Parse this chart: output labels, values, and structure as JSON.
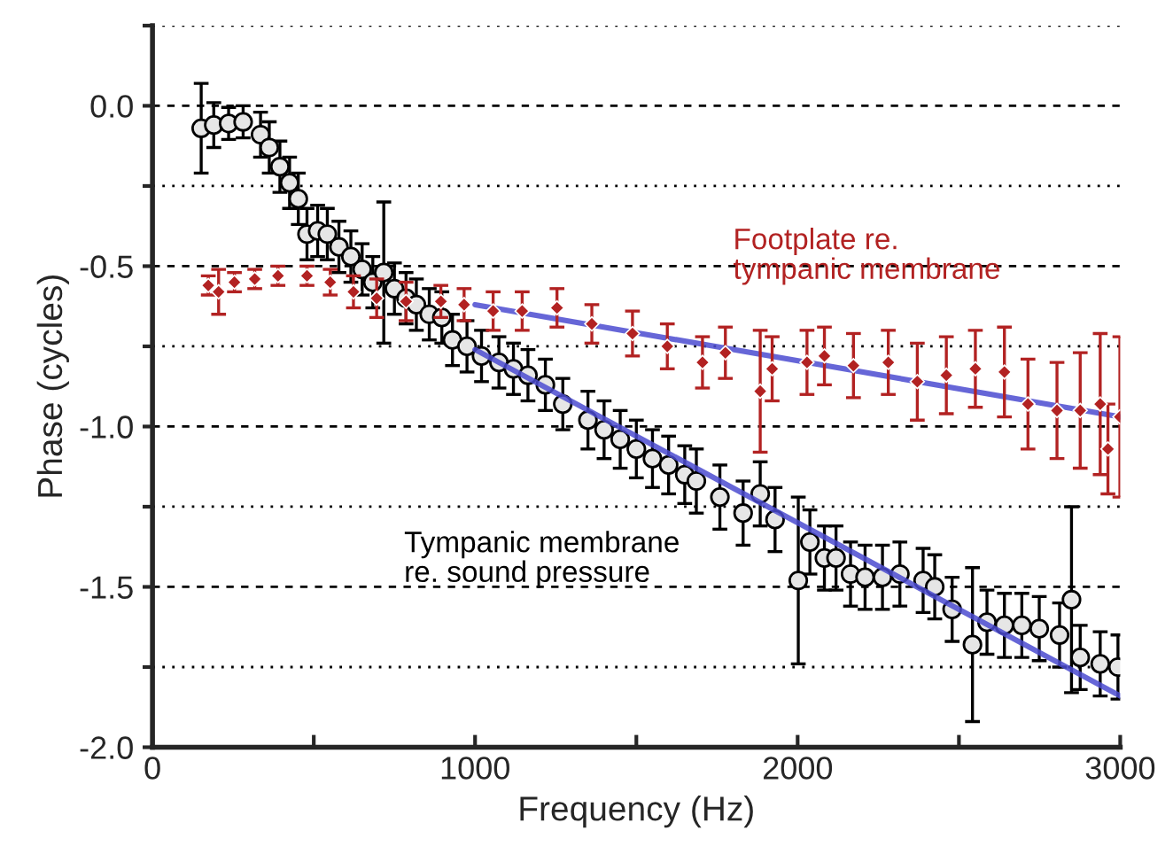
{
  "chart_data": {
    "type": "scatter",
    "xlabel": "Frequency (Hz)",
    "ylabel": "Phase (cycles)",
    "xlim": [
      0,
      3000
    ],
    "ylim": [
      -2.0,
      0.25
    ],
    "xticks": [
      {
        "value": 0,
        "label": "0"
      },
      {
        "value": 500,
        "label": null
      },
      {
        "value": 1000,
        "label": "1000"
      },
      {
        "value": 1500,
        "label": null
      },
      {
        "value": 2000,
        "label": "2000"
      },
      {
        "value": 2500,
        "label": null
      },
      {
        "value": 3000,
        "label": "3000"
      }
    ],
    "yticks": [
      {
        "value": -2.0,
        "label": "-2.0"
      },
      {
        "value": -1.75,
        "label": null
      },
      {
        "value": -1.5,
        "label": "-1.5"
      },
      {
        "value": -1.25,
        "label": null
      },
      {
        "value": -1.0,
        "label": "-1.0"
      },
      {
        "value": -0.75,
        "label": null
      },
      {
        "value": -0.5,
        "label": "-0.5"
      },
      {
        "value": -0.25,
        "label": null
      },
      {
        "value": 0.0,
        "label": "0.0"
      },
      {
        "value": 0.25,
        "label": null
      }
    ],
    "grid": "y",
    "series": [
      {
        "name": "Footplate re.\ntympanic membrane",
        "marker": "diamond",
        "color": "#b22222",
        "x": [
          173,
          205,
          254,
          317,
          389,
          479,
          551,
          623,
          695,
          786,
          894,
          966,
          1056,
          1146,
          1254,
          1362,
          1488,
          1596,
          1705,
          1776,
          1884,
          1921,
          2029,
          2083,
          2173,
          2281,
          2371,
          2461,
          2551,
          2641,
          2714,
          2804,
          2876,
          2938,
          2962,
          2999
        ],
        "values": [
          -0.56,
          -0.58,
          -0.55,
          -0.54,
          -0.53,
          -0.53,
          -0.55,
          -0.58,
          -0.6,
          -0.61,
          -0.61,
          -0.62,
          -0.64,
          -0.64,
          -0.63,
          -0.68,
          -0.71,
          -0.75,
          -0.8,
          -0.77,
          -0.89,
          -0.82,
          -0.8,
          -0.78,
          -0.81,
          -0.8,
          -0.86,
          -0.84,
          -0.82,
          -0.83,
          -0.93,
          -0.95,
          -0.95,
          -0.93,
          -1.07,
          -0.97
        ],
        "errors": [
          0.03,
          0.07,
          0.03,
          0.03,
          0.03,
          0.03,
          0.04,
          0.05,
          0.06,
          0.06,
          0.05,
          0.05,
          0.06,
          0.06,
          0.06,
          0.06,
          0.07,
          0.07,
          0.08,
          0.08,
          0.19,
          0.1,
          0.1,
          0.09,
          0.1,
          0.1,
          0.12,
          0.12,
          0.12,
          0.14,
          0.14,
          0.15,
          0.18,
          0.22,
          0.14,
          0.25
        ]
      },
      {
        "name": "Tympanic membrane\nre. sound pressure",
        "marker": "circle",
        "color": "#000000",
        "x": [
          151,
          190,
          236,
          281,
          335,
          362,
          395,
          425,
          452,
          479,
          512,
          542,
          578,
          615,
          650,
          683,
          717,
          750,
          786,
          818,
          858,
          897,
          930,
          975,
          1020,
          1074,
          1119,
          1164,
          1218,
          1272,
          1350,
          1400,
          1450,
          1500,
          1550,
          1600,
          1650,
          1686,
          1759,
          1831,
          1884,
          1930,
          2002,
          2038,
          2083,
          2119,
          2164,
          2209,
          2263,
          2317,
          2389,
          2425,
          2479,
          2542,
          2587,
          2641,
          2695,
          2749,
          2812,
          2849,
          2876,
          2938,
          2993
        ],
        "values": [
          -0.07,
          -0.06,
          -0.055,
          -0.05,
          -0.09,
          -0.13,
          -0.19,
          -0.24,
          -0.29,
          -0.4,
          -0.39,
          -0.4,
          -0.44,
          -0.47,
          -0.51,
          -0.55,
          -0.52,
          -0.57,
          -0.6,
          -0.62,
          -0.65,
          -0.66,
          -0.73,
          -0.75,
          -0.78,
          -0.8,
          -0.82,
          -0.84,
          -0.87,
          -0.93,
          -0.98,
          -1.01,
          -1.04,
          -1.07,
          -1.1,
          -1.12,
          -1.15,
          -1.17,
          -1.22,
          -1.27,
          -1.21,
          -1.29,
          -1.48,
          -1.36,
          -1.41,
          -1.41,
          -1.46,
          -1.47,
          -1.47,
          -1.46,
          -1.48,
          -1.5,
          -1.57,
          -1.68,
          -1.61,
          -1.62,
          -1.62,
          -1.63,
          -1.65,
          -1.54,
          -1.72,
          -1.74,
          -1.75
        ],
        "errors": [
          0.14,
          0.07,
          0.05,
          0.05,
          0.07,
          0.08,
          0.08,
          0.08,
          0.08,
          0.08,
          0.08,
          0.08,
          0.08,
          0.08,
          0.08,
          0.08,
          0.22,
          0.08,
          0.08,
          0.08,
          0.08,
          0.08,
          0.08,
          0.08,
          0.08,
          0.08,
          0.08,
          0.08,
          0.08,
          0.08,
          0.09,
          0.09,
          0.09,
          0.09,
          0.09,
          0.09,
          0.09,
          0.1,
          0.1,
          0.1,
          0.1,
          0.1,
          0.26,
          0.1,
          0.1,
          0.1,
          0.1,
          0.1,
          0.1,
          0.1,
          0.1,
          0.1,
          0.1,
          0.24,
          0.1,
          0.1,
          0.1,
          0.1,
          0.1,
          0.29,
          0.1,
          0.1,
          0.1
        ]
      },
      {
        "type": "line",
        "color": "#4b4bd0",
        "x": [
          1000,
          3000
        ],
        "values": [
          -0.62,
          -0.97
        ]
      },
      {
        "type": "line",
        "color": "#4b4bd0",
        "x": [
          1000,
          3000
        ],
        "values": [
          -0.76,
          -1.84
        ]
      }
    ]
  }
}
